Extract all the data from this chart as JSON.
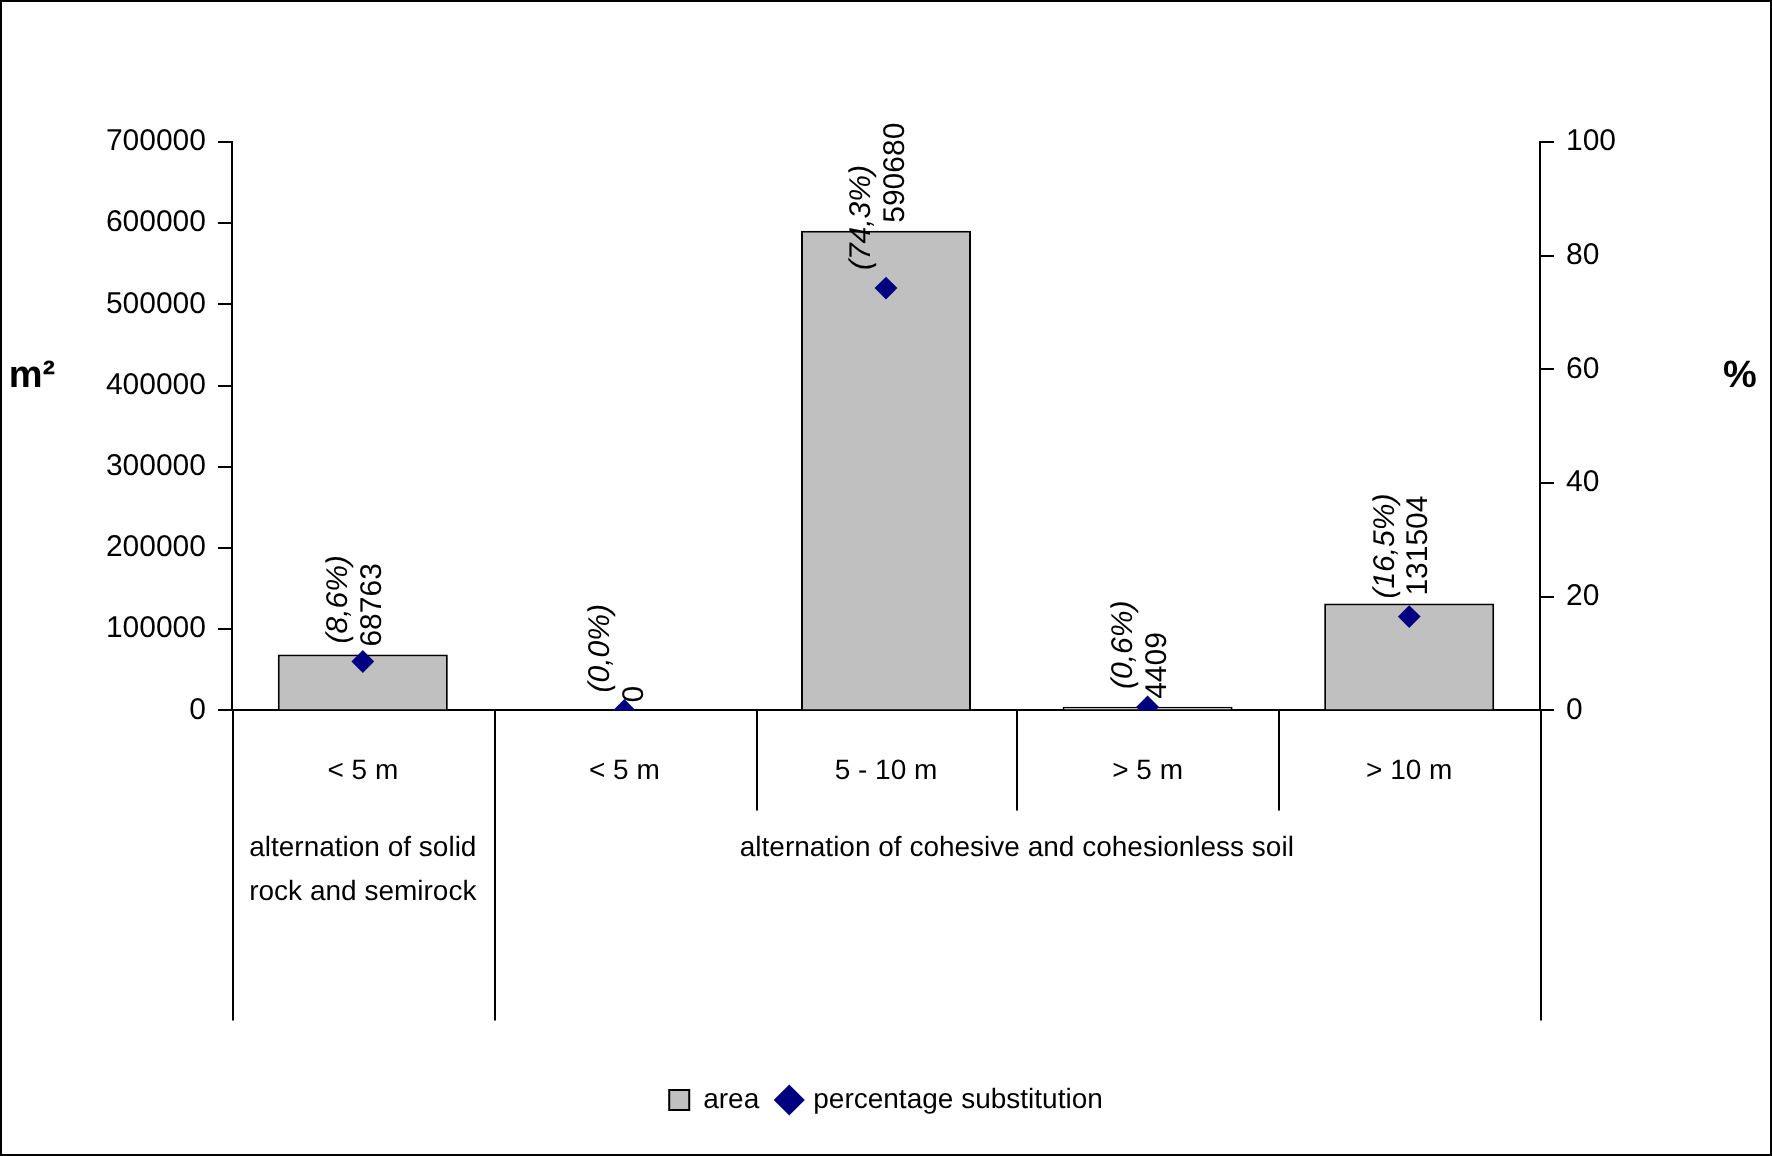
{
  "chart_data": {
    "type": "bar",
    "categories": [
      "< 5 m",
      "< 5 m",
      "5 - 10 m",
      "> 5 m",
      "> 10 m"
    ],
    "series": [
      {
        "name": "area",
        "color": "#c0c0c0",
        "values": [
          68763,
          0,
          590680,
          4409,
          131504
        ],
        "data_labels": true
      },
      {
        "name": "percentage substitution",
        "type": "scatter",
        "axis": "y2",
        "color": "#000080",
        "marker": "diamond",
        "values": [
          8.6,
          0.0,
          74.3,
          0.6,
          16.5
        ],
        "value_labels": [
          "(8,6%)",
          "(0,0%)",
          "(74,3%)",
          "(0,6%)",
          "(16,5%)"
        ]
      }
    ],
    "ylabel": "m²",
    "y2label": "%",
    "ylim": [
      0,
      700000
    ],
    "yticks": [
      0,
      100000,
      200000,
      300000,
      400000,
      500000,
      600000,
      700000
    ],
    "y2lim": [
      0,
      100
    ],
    "y2ticks": [
      0,
      20,
      40,
      60,
      80,
      100
    ],
    "annotations": [
      "alternation of solid rock and semirock",
      "alternation of cohesive and cohesionless soil"
    ],
    "grid": false,
    "legend": "bottom"
  }
}
